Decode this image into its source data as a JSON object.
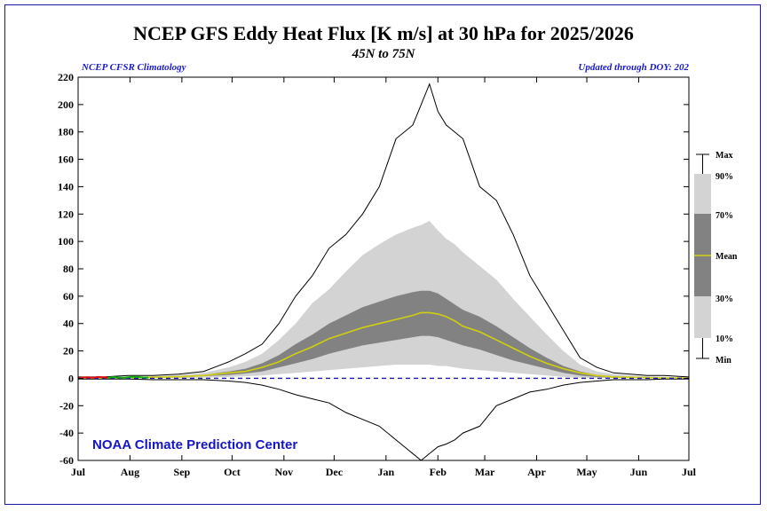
{
  "header": {
    "title": "NCEP GFS Eddy Heat Flux [K m/s] at 30 hPa for 2025/2026",
    "subtitle": "45N to 75N",
    "note_left": "NCEP CFSR Climatology",
    "note_right": "Updated through DOY: 202"
  },
  "credit": "NOAA Climate Prediction Center",
  "legend": {
    "max": "Max",
    "p90": "90%",
    "p70": "70%",
    "mean": "Mean",
    "p30": "30%",
    "p10": "10%",
    "min": "Min"
  },
  "colors": {
    "band_outer": "#d3d3d3",
    "band_inner": "#828282",
    "mean": "#d2cf10",
    "zero_line": "#1a1aa8",
    "obs_red": "#e01010",
    "obs_green": "#10a810",
    "frame": "#1a1aa8"
  },
  "chart_data": {
    "type": "area",
    "title": "NCEP GFS Eddy Heat Flux [K m/s] at 30 hPa for 2025/2026",
    "xlabel": "",
    "ylabel": "",
    "xlim": [
      0,
      365
    ],
    "ylim": [
      -60,
      220
    ],
    "yticks": [
      -60,
      -40,
      -20,
      0,
      20,
      40,
      60,
      80,
      100,
      120,
      140,
      160,
      180,
      200,
      220
    ],
    "month_labels": [
      "Jul",
      "Aug",
      "Sep",
      "Oct",
      "Nov",
      "Dec",
      "Jan",
      "Feb",
      "Mar",
      "Apr",
      "May",
      "Jun",
      "Jul"
    ],
    "month_days": [
      0,
      31,
      62,
      92,
      123,
      153,
      184,
      215,
      243,
      274,
      304,
      335,
      365
    ],
    "grid": false,
    "envelope_days": [
      0,
      15,
      30,
      45,
      60,
      75,
      90,
      100,
      110,
      120,
      130,
      140,
      150,
      160,
      170,
      180,
      190,
      200,
      205,
      210,
      215,
      220,
      225,
      230,
      240,
      250,
      260,
      270,
      280,
      290,
      300,
      310,
      320,
      330,
      340,
      350,
      365
    ],
    "series": [
      {
        "name": "Max",
        "values": [
          1,
          1,
          2,
          2,
          3,
          5,
          12,
          18,
          25,
          40,
          60,
          75,
          95,
          105,
          120,
          140,
          175,
          185,
          200,
          215,
          195,
          185,
          180,
          175,
          140,
          130,
          105,
          75,
          55,
          35,
          15,
          8,
          4,
          3,
          2,
          2,
          1
        ]
      },
      {
        "name": "90%",
        "values": [
          0.5,
          0.8,
          1.2,
          1.5,
          2.5,
          4,
          8,
          12,
          18,
          28,
          40,
          55,
          65,
          78,
          90,
          98,
          105,
          110,
          112,
          115,
          108,
          102,
          98,
          92,
          82,
          72,
          58,
          45,
          32,
          20,
          10,
          5,
          3,
          2,
          1.5,
          1,
          0.5
        ]
      },
      {
        "name": "70%",
        "values": [
          0.3,
          0.5,
          0.8,
          1,
          1.5,
          2.5,
          5,
          7,
          11,
          17,
          25,
          32,
          40,
          46,
          52,
          56,
          60,
          63,
          64,
          64,
          62,
          58,
          54,
          50,
          45,
          38,
          30,
          22,
          15,
          9,
          5,
          2.5,
          1.5,
          1,
          0.8,
          0.5,
          0.3
        ]
      },
      {
        "name": "Mean",
        "values": [
          0.2,
          0.3,
          0.5,
          0.8,
          1.2,
          2,
          4,
          5,
          8,
          12,
          18,
          23,
          29,
          33,
          37,
          40,
          43,
          46,
          48,
          48,
          47,
          45,
          42,
          38,
          34,
          28,
          22,
          16,
          11,
          7,
          4,
          2,
          1,
          0.8,
          0.5,
          0.3,
          0.2
        ]
      },
      {
        "name": "30%",
        "values": [
          0.1,
          0.2,
          0.3,
          0.5,
          0.8,
          1.5,
          2.5,
          3.5,
          5,
          8,
          11,
          14,
          18,
          21,
          24,
          26,
          28,
          30,
          31,
          31,
          30,
          28,
          26,
          24,
          21,
          17,
          13,
          10,
          7,
          4,
          2,
          1,
          0.5,
          0.3,
          0.2,
          0.1,
          0.1
        ]
      },
      {
        "name": "10%",
        "values": [
          0,
          0,
          0,
          0,
          0.2,
          0.5,
          1,
          1.5,
          2,
          3,
          4,
          5,
          6,
          7,
          8,
          9,
          10,
          10,
          10,
          10,
          9,
          9,
          8,
          7,
          6,
          5,
          4,
          3,
          2,
          1,
          0.5,
          0.2,
          0,
          0,
          0,
          0,
          0
        ]
      },
      {
        "name": "Min",
        "values": [
          -0.5,
          -0.5,
          -0.5,
          -1,
          -1,
          -1,
          -2,
          -3,
          -5,
          -8,
          -12,
          -15,
          -18,
          -25,
          -30,
          -35,
          -45,
          -55,
          -60,
          -55,
          -50,
          -48,
          -45,
          -40,
          -35,
          -20,
          -15,
          -10,
          -8,
          -5,
          -3,
          -2,
          -1,
          -1,
          -1,
          -0.5,
          -0.5
        ]
      }
    ],
    "observed": {
      "days": [
        0,
        3,
        6,
        9,
        12,
        15,
        18,
        21,
        24,
        27,
        30,
        33,
        36,
        39,
        42
      ],
      "values": [
        0.3,
        0.6,
        0.8,
        0.5,
        1.0,
        0.7,
        0.4,
        0.9,
        0.6,
        0.5,
        0.8,
        1.2,
        0.9,
        0.6,
        0.4
      ],
      "color_change_day": 20
    }
  }
}
